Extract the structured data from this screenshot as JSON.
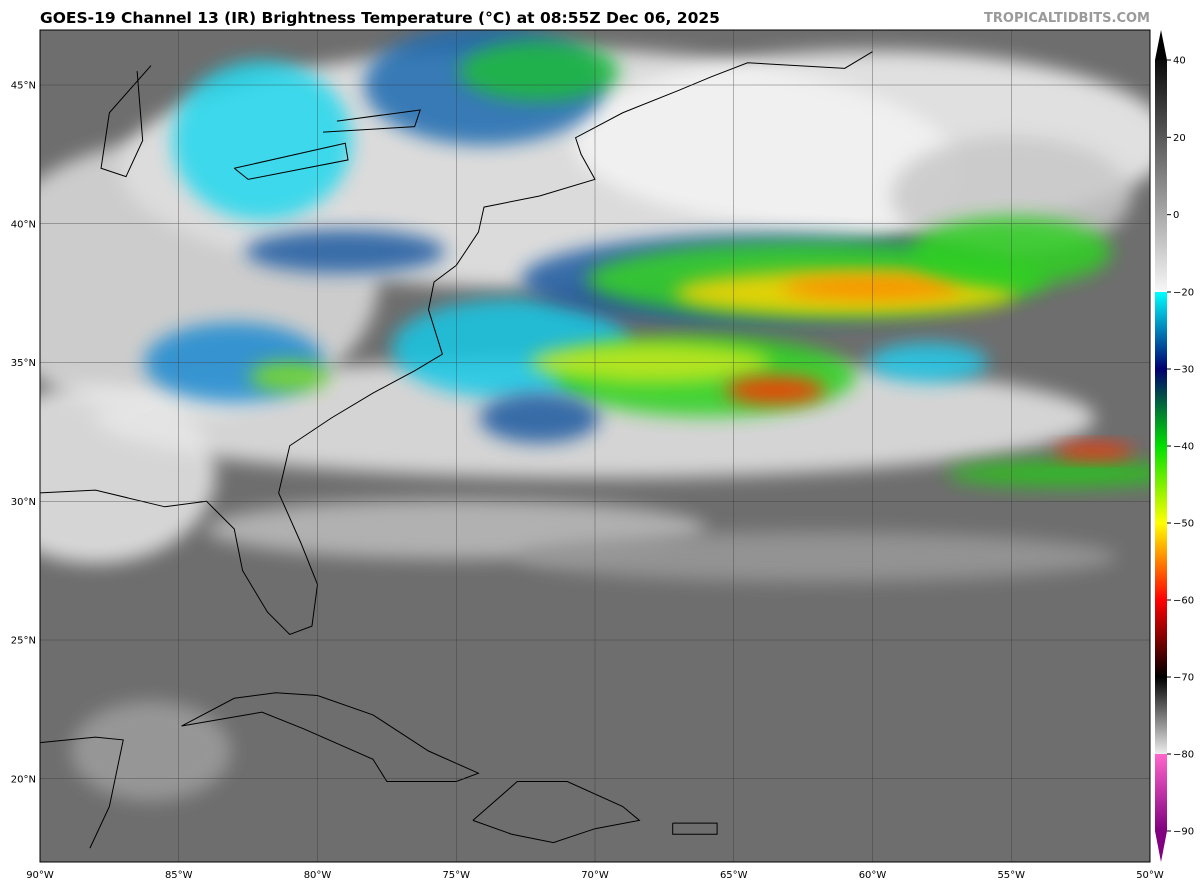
{
  "title": "GOES-19 Channel 13 (IR) Brightness Temperature (°C) at 08:55Z Dec 06, 2025",
  "brand": "TROPICALTIDBITS.COM",
  "map": {
    "lon_range": [
      -90,
      -50
    ],
    "lat_range": [
      17,
      47
    ],
    "lon_ticks": [
      "90°W",
      "85°W",
      "80°W",
      "75°W",
      "70°W",
      "65°W",
      "60°W",
      "55°W",
      "50°W"
    ],
    "lat_ticks": [
      "45°N",
      "40°N",
      "35°N",
      "30°N",
      "25°N",
      "20°N"
    ],
    "grid": true
  },
  "colorbar": {
    "ticks": [
      "40",
      "20",
      "0",
      "−20",
      "−30",
      "−40",
      "−50",
      "−60",
      "−70",
      "−80",
      "−90"
    ],
    "tick_values": [
      40,
      20,
      0,
      -20,
      -30,
      -40,
      -50,
      -60,
      -70,
      -80,
      -90
    ],
    "extend": "both",
    "colors": {
      "warm": "#555555",
      "cold_start": "#00ffff",
      "green": "#00e000",
      "yellow": "#ffff00",
      "red": "#ff0000",
      "black": "#000000",
      "pink": "#ff66cc",
      "purple": "#800080"
    }
  }
}
